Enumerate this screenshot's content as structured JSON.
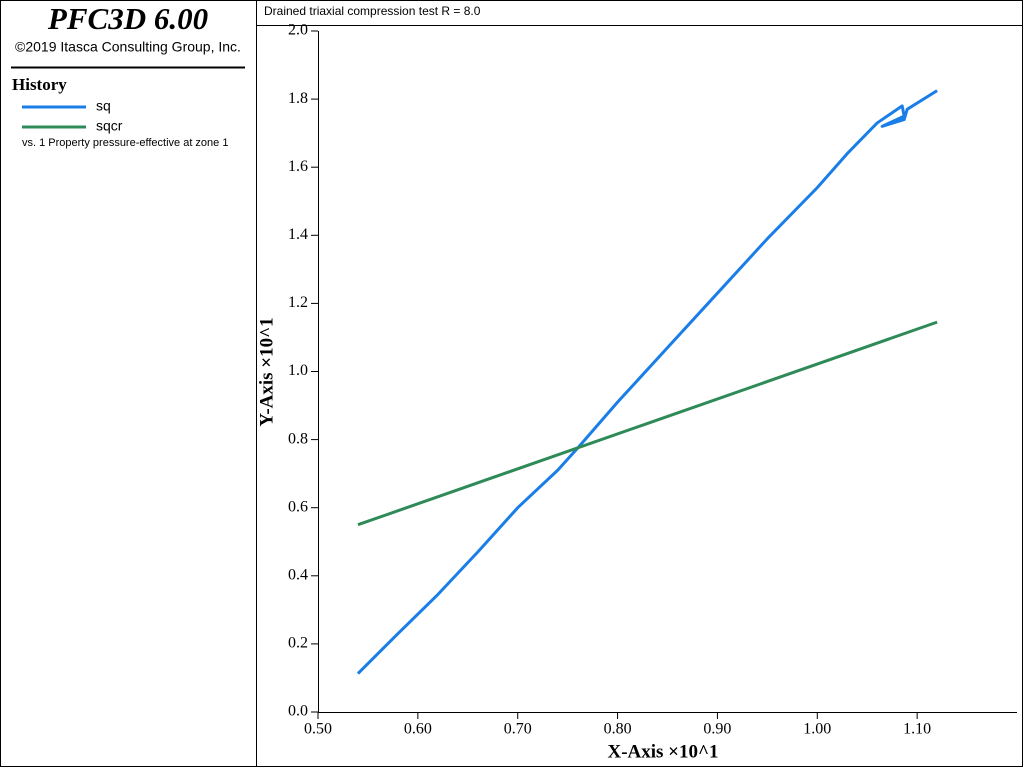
{
  "chart_data": {
    "type": "line",
    "app_title": "PFC3D 6.00",
    "copyright": "©2019 Itasca Consulting Group, Inc.",
    "legend_title": "History",
    "legend_note": "vs. 1 Property pressure-effective at zone 1",
    "title": "Drained triaxial compression test R = 8.0",
    "xlabel": "X-Axis ×10^1",
    "ylabel": "Y-Axis ×10^1",
    "xlim": [
      0.5,
      1.2
    ],
    "ylim": [
      0,
      2
    ],
    "xticks": [
      {
        "value": 0.5,
        "label": "0.50"
      },
      {
        "value": 0.6,
        "label": "0.60"
      },
      {
        "value": 0.7,
        "label": "0.70"
      },
      {
        "value": 0.8,
        "label": "0.80"
      },
      {
        "value": 0.9,
        "label": "0.90"
      },
      {
        "value": 1.0,
        "label": "1.00"
      },
      {
        "value": 1.1,
        "label": "1.10"
      }
    ],
    "yticks": [
      {
        "value": 0,
        "label": "0.0"
      },
      0.2,
      0.4,
      0.6,
      0.8,
      {
        "value": 1,
        "label": "1.0"
      },
      1.2,
      1.4,
      1.6,
      1.8,
      {
        "value": 2,
        "label": "2.0"
      }
    ],
    "series": [
      {
        "name": "sq",
        "color": "#1a7ee8",
        "x": [
          0.54,
          0.58,
          0.62,
          0.66,
          0.7,
          0.74,
          0.76,
          0.8,
          0.85,
          0.9,
          0.95,
          1.0,
          1.03,
          1.06,
          1.085,
          1.087,
          1.065,
          1.087,
          1.09,
          1.12
        ],
        "values": [
          0.113,
          0.23,
          0.345,
          0.47,
          0.6,
          0.71,
          0.775,
          0.91,
          1.07,
          1.23,
          1.39,
          1.54,
          1.64,
          1.73,
          1.78,
          1.75,
          1.72,
          1.74,
          1.77,
          1.825
        ]
      },
      {
        "name": "sqcr",
        "color": "#2e8b57",
        "x": [
          0.54,
          0.83,
          1.12
        ],
        "values": [
          0.55,
          0.8475,
          1.145
        ]
      }
    ]
  }
}
